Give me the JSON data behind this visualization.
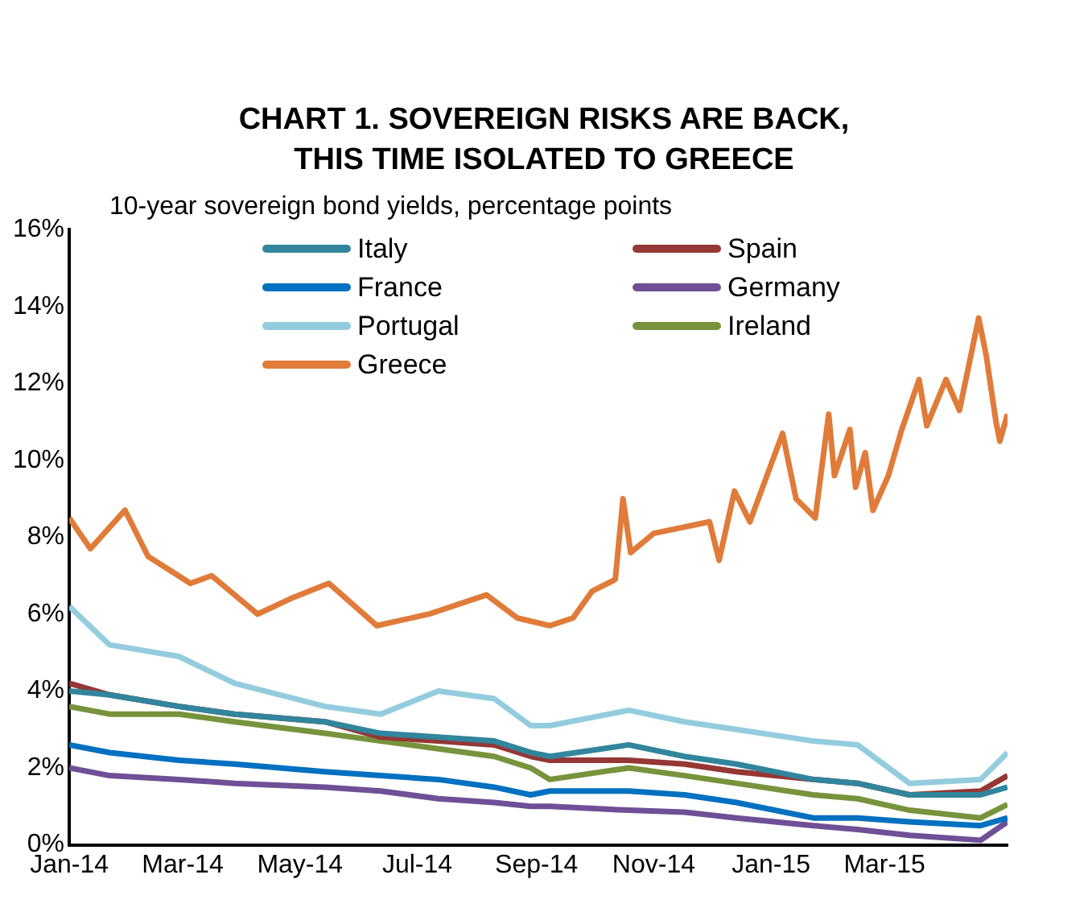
{
  "chart_data": {
    "type": "line",
    "title": "CHART 1. SOVEREIGN RISKS ARE BACK,\nTHIS TIME ISOLATED TO GREECE",
    "ylabel": "10-year sovereign bond yields, percentage points",
    "x": [
      "2014-01-01",
      "2014-01-22",
      "2014-02-27",
      "2014-03-28",
      "2014-05-14",
      "2014-06-12",
      "2014-07-12",
      "2014-08-10",
      "2014-08-29",
      "2014-09-08",
      "2014-10-19",
      "2014-11-17",
      "2014-12-14",
      "2015-01-23",
      "2015-02-15",
      "2015-03-14",
      "2015-04-20",
      "2015-05-04"
    ],
    "series": [
      {
        "name": "Italy",
        "color": "#31859c",
        "values": [
          4.0,
          3.9,
          3.6,
          3.4,
          3.2,
          2.9,
          2.8,
          2.7,
          2.4,
          2.3,
          2.6,
          2.3,
          2.1,
          1.7,
          1.6,
          1.3,
          1.3,
          1.5
        ]
      },
      {
        "name": "Spain",
        "color": "#953735",
        "values": [
          4.2,
          3.9,
          3.6,
          3.4,
          3.2,
          2.8,
          2.7,
          2.6,
          2.3,
          2.2,
          2.2,
          2.1,
          1.9,
          1.7,
          1.6,
          1.3,
          1.4,
          1.8
        ]
      },
      {
        "name": "France",
        "color": "#0070c0",
        "values": [
          2.6,
          2.4,
          2.2,
          2.1,
          1.9,
          1.8,
          1.7,
          1.5,
          1.3,
          1.4,
          1.4,
          1.3,
          1.1,
          0.7,
          0.7,
          0.6,
          0.5,
          0.7
        ]
      },
      {
        "name": "Germany",
        "color": "#6f4f96",
        "values": [
          2.0,
          1.8,
          1.7,
          1.6,
          1.5,
          1.4,
          1.2,
          1.1,
          1.0,
          1.0,
          0.9,
          0.85,
          0.7,
          0.5,
          0.4,
          0.25,
          0.12,
          0.6
        ]
      },
      {
        "name": "Portugal",
        "color": "#93cddd",
        "values": [
          6.2,
          5.2,
          4.9,
          4.2,
          3.6,
          3.4,
          4.0,
          3.8,
          3.1,
          3.1,
          3.5,
          3.2,
          3.0,
          2.7,
          2.6,
          1.6,
          1.7,
          2.4
        ]
      },
      {
        "name": "Ireland",
        "color": "#77933c",
        "values": [
          3.6,
          3.4,
          3.4,
          3.2,
          2.9,
          2.7,
          2.5,
          2.3,
          2.0,
          1.7,
          2.0,
          1.8,
          1.6,
          1.3,
          1.2,
          0.9,
          0.7,
          1.05
        ]
      },
      {
        "name": "Greece",
        "color": "#e07b39",
        "x": [
          "2014-01-01",
          "2014-01-12",
          "2014-01-30",
          "2014-02-11",
          "2014-03-05",
          "2014-03-16",
          "2014-04-09",
          "2014-04-26",
          "2014-05-16",
          "2014-06-10",
          "2014-07-07",
          "2014-08-06",
          "2014-08-22",
          "2014-09-08",
          "2014-09-20",
          "2014-09-30",
          "2014-10-12",
          "2014-10-16",
          "2014-10-20",
          "2014-11-01",
          "2014-11-30",
          "2014-12-05",
          "2014-12-13",
          "2014-12-21",
          "2015-01-07",
          "2015-01-14",
          "2015-01-24",
          "2015-01-31",
          "2015-02-03",
          "2015-02-11",
          "2015-02-14",
          "2015-02-19",
          "2015-02-23",
          "2015-03-03",
          "2015-03-10",
          "2015-03-19",
          "2015-03-23",
          "2015-04-02",
          "2015-04-09",
          "2015-04-19",
          "2015-04-23",
          "2015-04-28",
          "2015-04-30",
          "2015-05-04"
        ],
        "values": [
          8.5,
          7.7,
          8.7,
          7.5,
          6.8,
          7.0,
          6.0,
          6.4,
          6.8,
          5.7,
          6.0,
          6.5,
          5.9,
          5.7,
          5.9,
          6.6,
          6.9,
          9.0,
          7.6,
          8.1,
          8.4,
          7.4,
          9.2,
          8.4,
          10.7,
          9.0,
          8.5,
          11.2,
          9.6,
          10.8,
          9.3,
          10.2,
          8.7,
          9.6,
          10.8,
          12.1,
          10.9,
          12.1,
          11.3,
          13.7,
          12.7,
          11.0,
          10.5,
          11.2
        ]
      }
    ],
    "xlim": [
      "2014-01-01",
      "2015-05-04"
    ],
    "xticks": [
      {
        "value": "2014-01-01",
        "label": "Jan-14"
      },
      {
        "value": "2014-03-01",
        "label": "Mar-14"
      },
      {
        "value": "2014-05-01",
        "label": "May-14"
      },
      {
        "value": "2014-07-01",
        "label": "Jul-14"
      },
      {
        "value": "2014-09-01",
        "label": "Sep-14"
      },
      {
        "value": "2014-11-01",
        "label": "Nov-14"
      },
      {
        "value": "2015-01-01",
        "label": "Jan-15"
      },
      {
        "value": "2015-03-01",
        "label": "Mar-15"
      }
    ],
    "ylim": [
      0,
      16
    ],
    "yticks": [
      {
        "value": 0,
        "label": "0%"
      },
      {
        "value": 2,
        "label": "2%"
      },
      {
        "value": 4,
        "label": "4%"
      },
      {
        "value": 6,
        "label": "6%"
      },
      {
        "value": 8,
        "label": "8%"
      },
      {
        "value": 10,
        "label": "10%"
      },
      {
        "value": 12,
        "label": "12%"
      },
      {
        "value": 14,
        "label": "14%"
      },
      {
        "value": 16,
        "label": "16%"
      }
    ],
    "grid": false,
    "legend": "top left"
  }
}
